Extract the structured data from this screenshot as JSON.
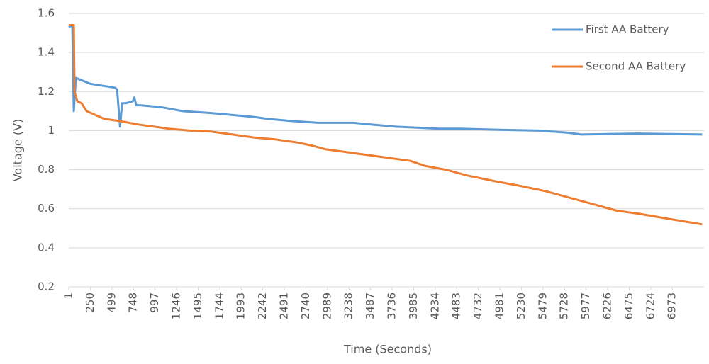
{
  "chart_data": {
    "type": "line",
    "xlabel": "Time (Seconds)",
    "ylabel": "Voltage (V)",
    "xlim": [
      1,
      7340
    ],
    "ylim": [
      0.2,
      1.6
    ],
    "xticks": [
      1,
      250,
      499,
      748,
      997,
      1246,
      1495,
      1744,
      1993,
      2242,
      2491,
      2740,
      2989,
      3238,
      3487,
      3736,
      3985,
      4234,
      4483,
      4732,
      4981,
      5230,
      5479,
      5728,
      5977,
      6226,
      6475,
      6724,
      6973
    ],
    "yticks": [
      0.2,
      0.4,
      0.6,
      0.8,
      1,
      1.2,
      1.4,
      1.6
    ],
    "grid": true,
    "legend": "upper right",
    "series": [
      {
        "name": "First AA Battery",
        "color": "#5b9bd5",
        "x": [
          1,
          42,
          59,
          83,
          248,
          535,
          560,
          593,
          618,
          659,
          741,
          757,
          782,
          823,
          1070,
          1316,
          1645,
          1892,
          2139,
          2303,
          2550,
          2879,
          3290,
          3536,
          3783,
          4276,
          4523,
          4934,
          5428,
          5757,
          5921,
          6579,
          7319
        ],
        "values": [
          1.53,
          1.54,
          1.1,
          1.27,
          1.24,
          1.22,
          1.21,
          1.02,
          1.14,
          1.14,
          1.15,
          1.17,
          1.13,
          1.13,
          1.12,
          1.1,
          1.09,
          1.08,
          1.07,
          1.06,
          1.05,
          1.04,
          1.04,
          1.03,
          1.02,
          1.01,
          1.01,
          1.005,
          1.0,
          0.99,
          0.98,
          0.985,
          0.98
        ]
      },
      {
        "name": "Second AA Battery",
        "color": "#ed7d31",
        "x": [
          1,
          59,
          67,
          100,
          149,
          207,
          412,
          577,
          700,
          823,
          988,
          1152,
          1399,
          1645,
          1892,
          2139,
          2385,
          2632,
          2796,
          2961,
          3125,
          3290,
          3454,
          3701,
          3947,
          4112,
          4358,
          4605,
          4934,
          5180,
          5509,
          5757,
          6086,
          6332,
          6579,
          6908,
          7319
        ],
        "values": [
          1.54,
          1.54,
          1.2,
          1.15,
          1.14,
          1.1,
          1.06,
          1.05,
          1.04,
          1.03,
          1.02,
          1.01,
          1.0,
          0.995,
          0.98,
          0.965,
          0.955,
          0.94,
          0.925,
          0.905,
          0.895,
          0.885,
          0.875,
          0.86,
          0.845,
          0.82,
          0.8,
          0.77,
          0.74,
          0.72,
          0.69,
          0.66,
          0.62,
          0.59,
          0.575,
          0.55,
          0.52
        ]
      }
    ]
  }
}
